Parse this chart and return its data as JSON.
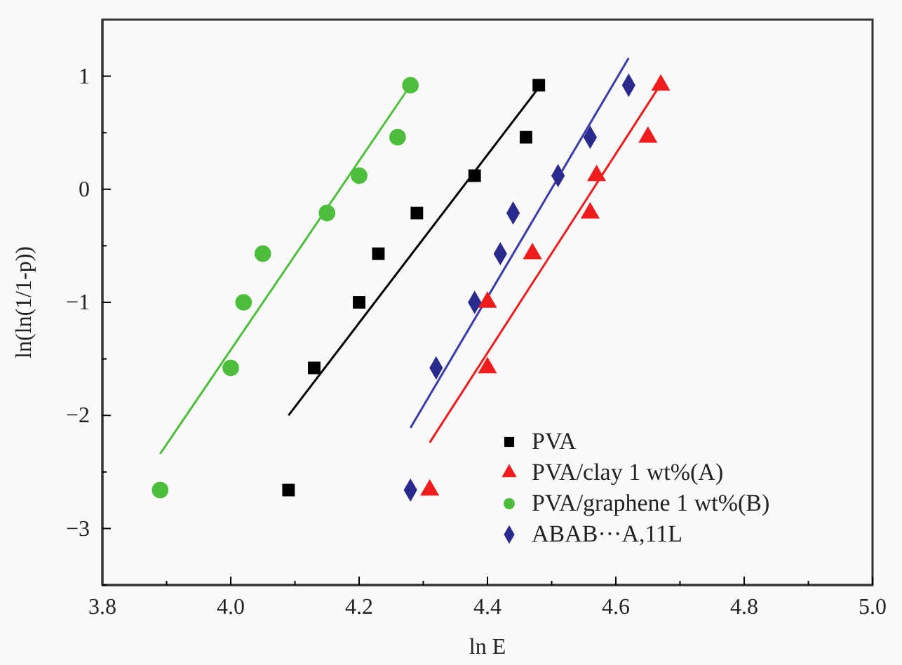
{
  "chart_data": {
    "type": "scatter",
    "xlabel": "ln E",
    "ylabel": "ln(ln(1/1-p))",
    "xlim": [
      3.8,
      5.0
    ],
    "xticks": [
      {
        "value": 3.8,
        "label": "3.8"
      },
      {
        "value": 3.9,
        "label": null
      },
      {
        "value": 4.0,
        "label": "4.0"
      },
      {
        "value": 4.1,
        "label": null
      },
      {
        "value": 4.2,
        "label": "4.2"
      },
      {
        "value": 4.3,
        "label": null
      },
      {
        "value": 4.4,
        "label": "4.4"
      },
      {
        "value": 4.5,
        "label": null
      },
      {
        "value": 4.6,
        "label": "4.6"
      },
      {
        "value": 4.7,
        "label": null
      },
      {
        "value": 4.8,
        "label": "4.8"
      },
      {
        "value": 4.9,
        "label": null
      },
      {
        "value": 5.0,
        "label": "5.0"
      }
    ],
    "ylim": [
      -3.5,
      1.5
    ],
    "yticks": [
      {
        "value": -3.5,
        "label": null
      },
      -3,
      {
        "value": -2.5,
        "label": null
      },
      -2,
      {
        "value": -1.5,
        "label": null
      },
      -1,
      {
        "value": -0.5,
        "label": null
      },
      0,
      {
        "value": 0.5,
        "label": null
      },
      1
    ],
    "grid": false,
    "legend": "bottom right",
    "series": [
      {
        "name": "PVA",
        "marker": "square",
        "color": "#000000",
        "x": [
          4.09,
          4.13,
          4.2,
          4.23,
          4.29,
          4.38,
          4.46,
          4.48
        ],
        "values": [
          -2.66,
          -1.58,
          -1.0,
          -0.57,
          -0.21,
          0.12,
          0.46,
          0.92
        ]
      },
      {
        "name": "PVA/clay 1 wt%(A)",
        "marker": "triangle",
        "color": "#ee1c1c",
        "x": [
          4.31,
          4.4,
          4.4,
          4.47,
          4.56,
          4.57,
          4.65,
          4.67
        ],
        "values": [
          -2.66,
          -1.58,
          -1.0,
          -0.57,
          -0.21,
          0.12,
          0.46,
          0.92
        ]
      },
      {
        "name": "PVA/graphene 1 wt%(B)",
        "marker": "circle",
        "color": "#4cbe3c",
        "x": [
          3.89,
          4.0,
          4.02,
          4.05,
          4.15,
          4.2,
          4.26,
          4.28
        ],
        "values": [
          -2.66,
          -1.58,
          -1.0,
          -0.57,
          -0.21,
          0.12,
          0.46,
          0.92
        ]
      },
      {
        "name": "ABAB···A,11L",
        "marker": "diamond",
        "color": "#2a2a8c",
        "x": [
          4.28,
          4.32,
          4.38,
          4.42,
          4.44,
          4.51,
          4.56,
          4.62
        ],
        "values": [
          -2.66,
          -1.58,
          -1.0,
          -0.57,
          -0.21,
          0.12,
          0.46,
          0.92
        ]
      },
      {
        "type": "line",
        "marker": "none",
        "color": "#000000",
        "x": [
          4.09,
          4.48
        ],
        "values": [
          -2.0,
          0.9
        ]
      },
      {
        "type": "line",
        "marker": "none",
        "color": "#ee1c1c",
        "x": [
          4.31,
          4.67
        ],
        "values": [
          -2.24,
          0.93
        ]
      },
      {
        "type": "line",
        "marker": "none",
        "color": "#4cbe3c",
        "x": [
          3.89,
          4.28
        ],
        "values": [
          -2.34,
          0.92
        ]
      },
      {
        "type": "line",
        "marker": "none",
        "color": "#3a3aa8",
        "x": [
          4.28,
          4.62
        ],
        "values": [
          -2.11,
          1.16
        ]
      }
    ]
  }
}
